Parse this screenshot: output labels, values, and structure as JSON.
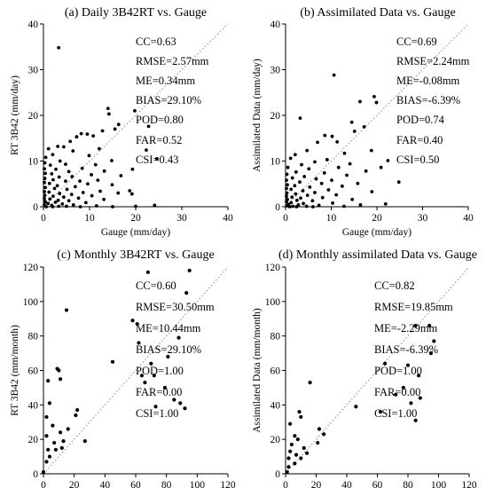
{
  "chart_data": [
    {
      "type": "scatter",
      "title": "(a)  Daily 3B42RT vs. Gauge",
      "xlabel": "Gauge (mm/day)",
      "ylabel": "RT 3B42 (mm/day)",
      "xlim": [
        0,
        40
      ],
      "ylim": [
        0,
        40
      ],
      "xticks": [
        "0",
        "10",
        "20",
        "30",
        "40"
      ],
      "yticks": [
        "0",
        "10",
        "20",
        "30",
        "40"
      ],
      "one_to_one_line": true,
      "stats": [
        "CC=0.63",
        "RMSE=2.57mm",
        "ME=0.34mm",
        "BIAS=29.10%",
        "POD=0.80",
        "FAR=0.52",
        "CSI=0.43"
      ],
      "points": [
        [
          3.3,
          34.8
        ],
        [
          14,
          21.5
        ],
        [
          14.2,
          20.3
        ],
        [
          19.8,
          21
        ],
        [
          16.3,
          18
        ],
        [
          15.5,
          17
        ],
        [
          22.8,
          17.6
        ],
        [
          12.8,
          16.6
        ],
        [
          8.2,
          16
        ],
        [
          9.5,
          15.9
        ],
        [
          7.2,
          15.3
        ],
        [
          10.8,
          15.5
        ],
        [
          5.8,
          14.3
        ],
        [
          3.1,
          13.2
        ],
        [
          4.4,
          13.1
        ],
        [
          1.1,
          12.7
        ],
        [
          12.1,
          12.7
        ],
        [
          22.3,
          12.4
        ],
        [
          24.6,
          10.5
        ],
        [
          6.4,
          12.2
        ],
        [
          2,
          11.4
        ],
        [
          9.9,
          11.2
        ],
        [
          0.5,
          10.8
        ],
        [
          14.8,
          10.1
        ],
        [
          3.6,
          10
        ],
        [
          19.3,
          8.2
        ],
        [
          11.3,
          9.2
        ],
        [
          0.3,
          9.6
        ],
        [
          1.5,
          9.1
        ],
        [
          4.8,
          9.3
        ],
        [
          0.2,
          8.3
        ],
        [
          2.7,
          8.2
        ],
        [
          8.4,
          8.4
        ],
        [
          13.2,
          7.8
        ],
        [
          5.5,
          7.7
        ],
        [
          0.4,
          7.3
        ],
        [
          1.8,
          7.2
        ],
        [
          10.4,
          7
        ],
        [
          16.8,
          6.8
        ],
        [
          3.4,
          6.5
        ],
        [
          6.2,
          6.6
        ],
        [
          0.3,
          6.2
        ],
        [
          2.1,
          5.9
        ],
        [
          11.8,
          5.8
        ],
        [
          4.8,
          5.6
        ],
        [
          7.9,
          5.6
        ],
        [
          0.2,
          5.3
        ],
        [
          1.3,
          5.1
        ],
        [
          9.6,
          5
        ],
        [
          14.9,
          4.8
        ],
        [
          3,
          4.6
        ],
        [
          6.9,
          4.4
        ],
        [
          0.4,
          4.2
        ],
        [
          2.4,
          4
        ],
        [
          18.7,
          3.5
        ],
        [
          5.1,
          3.8
        ],
        [
          12.3,
          3.4
        ],
        [
          0.2,
          3.3
        ],
        [
          1.2,
          3.2
        ],
        [
          8.6,
          3.1
        ],
        [
          16.2,
          3
        ],
        [
          3.5,
          2.9
        ],
        [
          6.1,
          2.7
        ],
        [
          0.3,
          2.5
        ],
        [
          2.1,
          2.3
        ],
        [
          10.5,
          2.4
        ],
        [
          4.4,
          2.1
        ],
        [
          19.2,
          2.8
        ],
        [
          7.6,
          1.9
        ],
        [
          0.2,
          1.8
        ],
        [
          1.4,
          1.7
        ],
        [
          13.1,
          1.6
        ],
        [
          3.2,
          1.4
        ],
        [
          5.5,
          1.3
        ],
        [
          0.4,
          1.1
        ],
        [
          2.6,
          1
        ],
        [
          9.2,
          0.9
        ],
        [
          1,
          0.7
        ],
        [
          4.1,
          0.6
        ],
        [
          0.2,
          0.4
        ],
        [
          6.5,
          0.4
        ],
        [
          1.8,
          0.3
        ],
        [
          11.5,
          0.2
        ],
        [
          3.3,
          0.1
        ],
        [
          0.6,
          0
        ],
        [
          8,
          0
        ],
        [
          15,
          0
        ],
        [
          20,
          0.1
        ],
        [
          24.1,
          0.3
        ],
        [
          2,
          0
        ],
        [
          5,
          0.1
        ]
      ]
    },
    {
      "type": "scatter",
      "title": "(b)  Assimilated Data vs. Gauge",
      "xlabel": "Gauge (mm/day)",
      "ylabel": "Assimilated Data (mm/day)",
      "xlim": [
        0,
        40
      ],
      "ylim": [
        0,
        40
      ],
      "xticks": [
        "0",
        "10",
        "20",
        "30",
        "40"
      ],
      "yticks": [
        "0",
        "10",
        "20",
        "30",
        "40"
      ],
      "one_to_one_line": true,
      "stats": [
        "CC=0.69",
        "RMSE=2.24mm",
        "ME=-0.08mm",
        "BIAS=-6.39%",
        "POD=0.74",
        "FAR=0.40",
        "CSI=0.50"
      ],
      "points": [
        [
          10.6,
          28.8
        ],
        [
          19.4,
          24.1
        ],
        [
          19.9,
          22.8
        ],
        [
          16.3,
          23
        ],
        [
          3.2,
          19.4
        ],
        [
          14.5,
          18.5
        ],
        [
          17.2,
          17.5
        ],
        [
          15.1,
          16.5
        ],
        [
          8.6,
          15.6
        ],
        [
          10.2,
          15.4
        ],
        [
          11.3,
          14.2
        ],
        [
          7,
          14.1
        ],
        [
          18.8,
          12.3
        ],
        [
          22.4,
          10.1
        ],
        [
          4.7,
          12.3
        ],
        [
          2.1,
          11.4
        ],
        [
          12.9,
          11.7
        ],
        [
          20.9,
          8.6
        ],
        [
          24.8,
          5.4
        ],
        [
          9.1,
          10.3
        ],
        [
          1.1,
          10.6
        ],
        [
          6.4,
          9.8
        ],
        [
          14.1,
          9.4
        ],
        [
          3.5,
          9.2
        ],
        [
          0.5,
          8.6
        ],
        [
          11.6,
          8.6
        ],
        [
          5.1,
          8.3
        ],
        [
          17.6,
          7.8
        ],
        [
          2.3,
          7.6
        ],
        [
          8.5,
          7.4
        ],
        [
          0.3,
          7.1
        ],
        [
          13.4,
          6.9
        ],
        [
          4.1,
          6.6
        ],
        [
          1.5,
          6.3
        ],
        [
          6.7,
          6.1
        ],
        [
          0.2,
          5.8
        ],
        [
          10.1,
          5.8
        ],
        [
          3.1,
          5.4
        ],
        [
          15.8,
          5.1
        ],
        [
          7.9,
          5.1
        ],
        [
          0.4,
          4.8
        ],
        [
          2,
          4.6
        ],
        [
          12.4,
          4.5
        ],
        [
          5.3,
          4.3
        ],
        [
          0.2,
          4
        ],
        [
          1.2,
          3.8
        ],
        [
          9.4,
          3.7
        ],
        [
          3.8,
          3.5
        ],
        [
          18.9,
          3.3
        ],
        [
          6.4,
          3.1
        ],
        [
          0.3,
          3
        ],
        [
          2.2,
          2.8
        ],
        [
          11.1,
          2.6
        ],
        [
          4.8,
          2.5
        ],
        [
          0.2,
          2.3
        ],
        [
          1.4,
          2.1
        ],
        [
          8.1,
          2
        ],
        [
          3.3,
          1.9
        ],
        [
          14.6,
          1.6
        ],
        [
          0.4,
          1.6
        ],
        [
          2.5,
          1.4
        ],
        [
          5.9,
          1.3
        ],
        [
          0.2,
          1.1
        ],
        [
          1.2,
          0.9
        ],
        [
          10.3,
          0.8
        ],
        [
          3.9,
          0.7
        ],
        [
          0.6,
          0.5
        ],
        [
          2.8,
          0.4
        ],
        [
          7.3,
          0.3
        ],
        [
          16.4,
          0.4
        ],
        [
          0.3,
          0.2
        ],
        [
          1.6,
          0.1
        ],
        [
          4.6,
          0.1
        ],
        [
          21.9,
          0.6
        ],
        [
          0.9,
          0
        ],
        [
          12.8,
          0.1
        ],
        [
          6,
          0
        ],
        [
          2.4,
          0
        ]
      ]
    },
    {
      "type": "scatter",
      "title": "(c)  Monthly 3B42RT vs. Gauge",
      "xlabel": "Gauge (mm/month)",
      "ylabel": "RT 3B42 (mm/month)",
      "xlim": [
        0,
        120
      ],
      "ylim": [
        0,
        120
      ],
      "xticks": [
        "0",
        "20",
        "40",
        "60",
        "80",
        "100",
        "120"
      ],
      "yticks": [
        "0",
        "20",
        "40",
        "60",
        "80",
        "100",
        "120"
      ],
      "one_to_one_line": true,
      "stats": [
        "CC=0.60",
        "RMSE=30.50mm",
        "ME=10.44mm",
        "BIAS=29.10%",
        "POD=1.00",
        "FAR=0.00",
        "CSI=1.00"
      ],
      "points": [
        [
          68,
          117
        ],
        [
          95,
          118
        ],
        [
          93,
          105
        ],
        [
          58,
          89
        ],
        [
          15,
          95
        ],
        [
          61,
          87
        ],
        [
          62,
          76
        ],
        [
          88,
          79
        ],
        [
          70,
          64
        ],
        [
          81,
          68
        ],
        [
          45,
          65
        ],
        [
          72,
          57
        ],
        [
          9,
          61
        ],
        [
          10,
          60
        ],
        [
          66,
          53
        ],
        [
          64,
          57
        ],
        [
          11,
          55
        ],
        [
          3,
          54
        ],
        [
          79,
          50
        ],
        [
          85,
          43
        ],
        [
          73,
          39
        ],
        [
          89,
          41
        ],
        [
          92,
          38
        ],
        [
          4,
          41
        ],
        [
          22,
          37
        ],
        [
          21,
          34
        ],
        [
          2,
          33
        ],
        [
          6,
          28
        ],
        [
          27,
          19
        ],
        [
          16,
          26
        ],
        [
          11,
          24
        ],
        [
          2,
          22
        ],
        [
          7,
          18
        ],
        [
          13,
          19
        ],
        [
          8,
          14
        ],
        [
          12,
          15
        ],
        [
          3,
          14
        ],
        [
          4,
          10
        ],
        [
          2,
          7
        ],
        [
          0,
          1
        ]
      ]
    },
    {
      "type": "scatter",
      "title": "(d)  Monthly assimilated Data vs. Gauge",
      "xlabel": "Gauge (mm/month)",
      "ylabel": "Assimilated Data (mm/month)",
      "xlim": [
        0,
        120
      ],
      "ylim": [
        0,
        120
      ],
      "xticks": [
        "0",
        "20",
        "40",
        "60",
        "80",
        "100",
        "120"
      ],
      "yticks": [
        "0",
        "20",
        "40",
        "60",
        "80",
        "100",
        "120"
      ],
      "one_to_one_line": true,
      "stats": [
        "CC=0.82",
        "RMSE=19.85mm",
        "ME=-2.29mm",
        "BIAS=-6.39%",
        "POD=1.00",
        "FAR=0.00",
        "CSI=1.00"
      ],
      "points": [
        [
          94,
          86
        ],
        [
          85,
          86
        ],
        [
          97,
          77
        ],
        [
          95,
          70
        ],
        [
          65,
          64
        ],
        [
          80,
          63
        ],
        [
          16,
          53
        ],
        [
          87,
          57
        ],
        [
          77,
          50
        ],
        [
          72,
          46
        ],
        [
          88,
          44
        ],
        [
          46,
          39
        ],
        [
          82,
          41
        ],
        [
          62,
          36
        ],
        [
          9,
          36
        ],
        [
          10,
          33
        ],
        [
          3,
          29
        ],
        [
          22,
          26
        ],
        [
          25,
          23
        ],
        [
          6,
          22
        ],
        [
          8,
          20
        ],
        [
          21,
          18
        ],
        [
          4,
          17
        ],
        [
          3,
          13
        ],
        [
          12,
          15
        ],
        [
          14,
          12
        ],
        [
          7,
          11
        ],
        [
          10,
          9
        ],
        [
          2,
          9
        ],
        [
          6,
          6
        ],
        [
          2,
          4
        ],
        [
          85,
          31
        ],
        [
          1,
          1
        ]
      ]
    }
  ]
}
